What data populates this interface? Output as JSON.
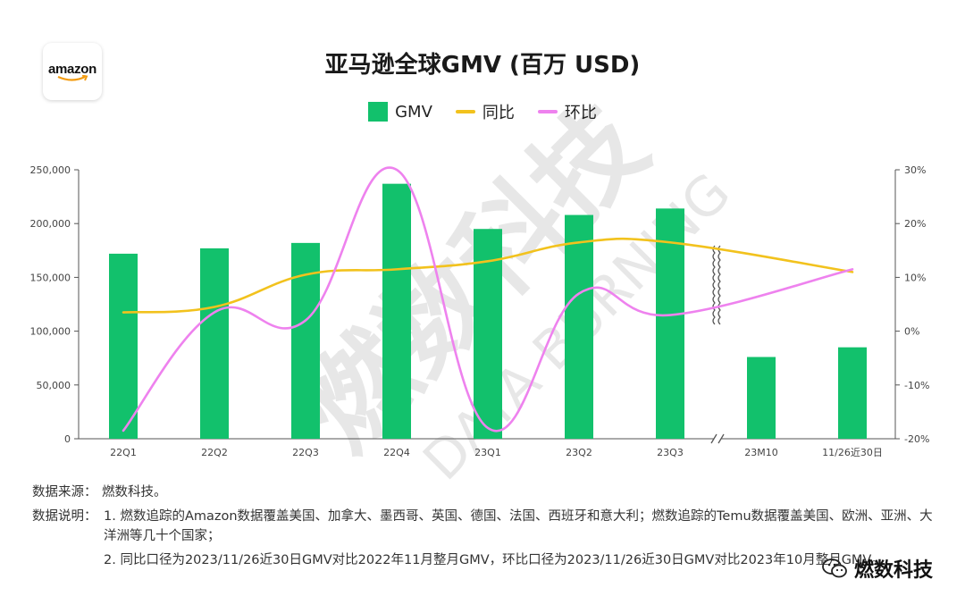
{
  "header": {
    "logo_text": "amazon",
    "title": "亚马逊全球GMV (百万 USD)"
  },
  "legend": [
    {
      "label": "GMV",
      "color": "#12C16C",
      "kind": "bar"
    },
    {
      "label": "同比",
      "color": "#F2C21D",
      "kind": "line"
    },
    {
      "label": "环比",
      "color": "#EE82EE",
      "kind": "line"
    }
  ],
  "chart_data": {
    "type": "bar",
    "categories": [
      "22Q1",
      "22Q2",
      "22Q3",
      "22Q4",
      "23Q1",
      "23Q2",
      "23Q3",
      "23M10",
      "11/26近30日"
    ],
    "series": [
      {
        "name": "GMV",
        "type": "bar",
        "axis": "left",
        "color": "#12C16C",
        "values": [
          172000,
          177000,
          182000,
          237000,
          195000,
          208000,
          214000,
          76000,
          85000
        ]
      },
      {
        "name": "同比",
        "type": "line",
        "axis": "right",
        "color": "#F2C21D",
        "values": [
          3.5,
          4.5,
          10.5,
          11.5,
          13,
          16.5,
          16.5,
          null,
          11
        ]
      },
      {
        "name": "环比",
        "type": "line",
        "axis": "right",
        "color": "#EE82EE",
        "values": [
          -18.5,
          3.5,
          2,
          30,
          -18,
          7,
          3,
          null,
          11.5
        ]
      }
    ],
    "y_left": {
      "min": 0,
      "max": 250000,
      "ticks": [
        "0",
        "50,000",
        "100,000",
        "150,000",
        "200,000",
        "250,000"
      ]
    },
    "y_right": {
      "min": -20,
      "max": 30,
      "ticks": [
        "-20%",
        "-10%",
        "0%",
        "10%",
        "20%",
        "30%"
      ]
    },
    "axis_break_after": "23Q3",
    "grid": false
  },
  "watermark": {
    "cn": "燃数科技",
    "en": "DATA BURNING"
  },
  "footer": {
    "source_label": "数据来源：",
    "source_text": "燃数科技。",
    "note_label": "数据说明：",
    "note_1": "1. 燃数追踪的Amazon数据覆盖美国、加拿大、墨西哥、英国、德国、法国、西班牙和意大利；燃数追踪的Temu数据覆盖美国、欧洲、亚洲、大洋洲等几十个国家；",
    "note_2": "2. 同比口径为2023/11/26近30日GMV对比2022年11月整月GMV，环比口径为2023/11/26近30日GMV对比2023年10月整月GMV。",
    "brand": "燃数科技"
  }
}
